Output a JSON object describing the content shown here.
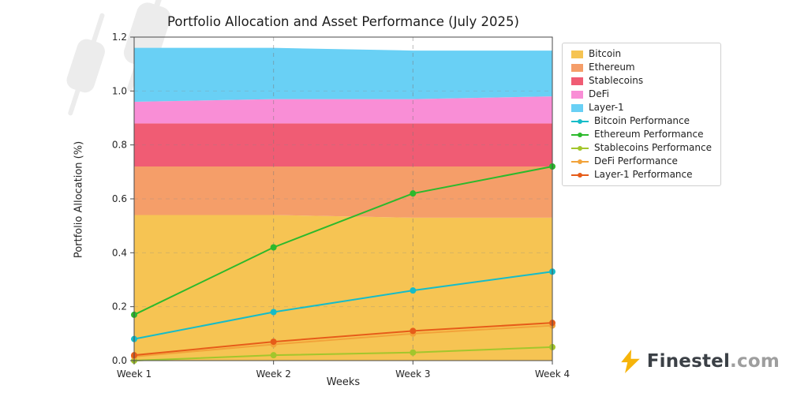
{
  "branding": {
    "name": "Finestel",
    "suffix": ".com",
    "icon_color": "#F6B40A",
    "name_color": "#3B4046",
    "suffix_color": "#9E9E9E"
  },
  "chart_data": {
    "type": "area",
    "title": "Portfolio Allocation and Asset Performance (July 2025)",
    "xlabel": "Weeks",
    "ylabel": "Portfolio Allocation (%)",
    "categories": [
      "Week 1",
      "Week 2",
      "Week 3",
      "Week 4"
    ],
    "ylim": [
      0,
      1.2
    ],
    "yticks": [
      0,
      0.2,
      0.4,
      0.6,
      0.8,
      1.0,
      1.2
    ],
    "grid": "dashed",
    "legend_position": "upper right, outside plot",
    "stacked_areas": [
      {
        "name": "Bitcoin",
        "color": "#F6C453",
        "values": [
          0.54,
          0.54,
          0.53,
          0.53
        ]
      },
      {
        "name": "Ethereum",
        "color": "#F59E69",
        "values": [
          0.18,
          0.18,
          0.19,
          0.19
        ]
      },
      {
        "name": "Stablecoins",
        "color": "#F05C74",
        "values": [
          0.16,
          0.16,
          0.16,
          0.16
        ]
      },
      {
        "name": "DeFi",
        "color": "#F98ED6",
        "values": [
          0.08,
          0.09,
          0.09,
          0.1
        ]
      },
      {
        "name": "Layer-1",
        "color": "#69D0F5",
        "values": [
          0.2,
          0.19,
          0.18,
          0.17
        ]
      }
    ],
    "lines": [
      {
        "name": "Bitcoin Performance",
        "color": "#16BCC8",
        "values": [
          0.08,
          0.18,
          0.26,
          0.33
        ]
      },
      {
        "name": "Ethereum Performance",
        "color": "#2CB92C",
        "values": [
          0.17,
          0.42,
          0.62,
          0.72
        ]
      },
      {
        "name": "Stablecoins Performance",
        "color": "#A3C62C",
        "values": [
          0.0,
          0.02,
          0.03,
          0.05
        ]
      },
      {
        "name": "DeFi Performance",
        "color": "#F2A33A",
        "values": [
          0.015,
          0.06,
          0.1,
          0.13
        ]
      },
      {
        "name": "Layer-1 Performance",
        "color": "#E65C19",
        "values": [
          0.02,
          0.07,
          0.11,
          0.14
        ]
      }
    ]
  }
}
